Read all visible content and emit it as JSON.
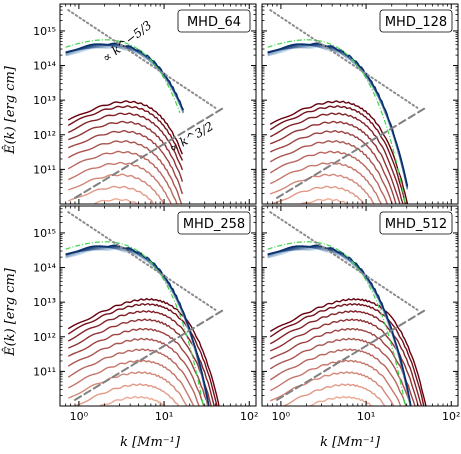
{
  "chart_data": {
    "type": "line",
    "layout": "2x2 grid of panels, shared axes",
    "xlabel": "k  [Mm⁻¹]",
    "ylabel": "Ê(k)  [erg cm]",
    "x_scale": "log",
    "y_scale": "log",
    "xlim": [
      0.6,
      120
    ],
    "ylim": [
      10000000000.0,
      6000000000000000.0
    ],
    "x_ticks": [
      "10⁰",
      "10¹",
      "10²"
    ],
    "y_ticks": [
      "10¹¹",
      "10¹²",
      "10¹³",
      "10¹⁴",
      "10¹⁵"
    ],
    "annotations": {
      "k53": "∝ k^−5/3",
      "k32": "∝ k^3/2"
    },
    "reference_lines": [
      {
        "name": "∝ k^−5/3",
        "style": "dotted",
        "color": "#8c8c8c",
        "x": [
          0.75,
          40
        ],
        "y": [
          4000000000000000.0,
          6000000000000.0
        ]
      },
      {
        "name": "∝ k^3/2",
        "style": "dashed",
        "color": "#808080",
        "x": [
          0.9,
          50
        ],
        "y": [
          15000000000.0,
          6000000000000.0
        ]
      }
    ],
    "kinetic_family": {
      "color_start": "#c6dbef",
      "color_end": "#08306b",
      "green": "#3fd44a"
    },
    "magnetic_family": {
      "color_start": "#fcbba1",
      "color_end": "#67000d"
    },
    "panels": [
      {
        "label": "MHD_64",
        "kmax": 16,
        "mag_peak_k": 4.0,
        "mag_max": 9000000000000.0,
        "n_mag": 12,
        "n_kin": 8
      },
      {
        "label": "MHD_128",
        "kmax": 30,
        "mag_peak_k": 5.0,
        "mag_max": 9000000000000.0,
        "n_mag": 12,
        "n_kin": 8
      },
      {
        "label": "MHD_258",
        "kmax": 50,
        "mag_peak_k": 7.0,
        "mag_max": 12000000000000.0,
        "n_mag": 12,
        "n_kin": 8
      },
      {
        "label": "MHD_512",
        "kmax": 50,
        "mag_peak_k": 8.0,
        "mag_max": 12000000000000.0,
        "n_mag": 12,
        "n_kin": 8
      }
    ]
  }
}
